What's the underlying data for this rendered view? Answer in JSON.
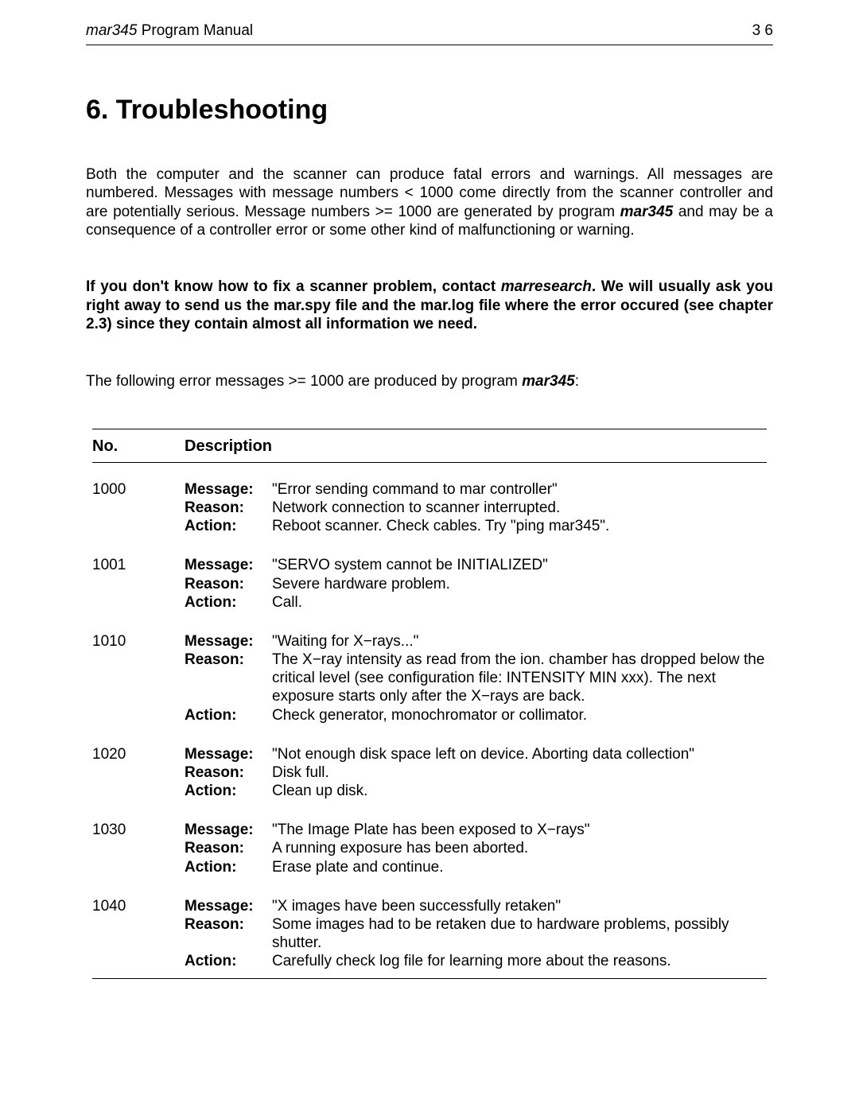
{
  "header": {
    "title_italic": "mar345",
    "title_rest": " Program Manual",
    "page_number": "3 6"
  },
  "heading": "6. Troubleshooting",
  "intro": {
    "p1_a": "Both the computer and the scanner can produce fatal errors and warnings. All messages are numbered. Messages with message numbers < 1000 come directly from the scanner controller and are potentially serious. Message numbers >= 1000 are generated by program ",
    "p1_b": "mar345",
    "p1_c": " and may be a consequence of a controller error or some other kind of malfunctioning or warning."
  },
  "notice": {
    "a": "If you don't know how to fix a scanner problem, contact ",
    "b": "marresearch",
    "c": ". We will usually ask you right away to send us the mar.spy file and the mar.log file where the error occured (see chapter 2.3) since they contain almost all information we need."
  },
  "lead": {
    "a": "The following error messages >= 1000 are produced by program ",
    "b": "mar345",
    "c": ":"
  },
  "table": {
    "headers": {
      "no": "No.",
      "desc": "Description"
    },
    "labels": {
      "message": "Message:",
      "reason": "Reason:",
      "action": "Action:"
    },
    "rows": [
      {
        "no": "1000",
        "message": "\"Error sending command to mar controller\"",
        "reason": "Network connection to scanner interrupted.",
        "action": "Reboot scanner. Check cables. Try \"ping mar345\"."
      },
      {
        "no": "1001",
        "message": "\"SERVO system cannot be INITIALIZED\"",
        "reason": "Severe hardware problem.",
        "action": "Call."
      },
      {
        "no": "1010",
        "message": "\"Waiting for X−rays...\"",
        "reason": "The X−ray intensity as read from the ion. chamber has dropped below the critical level (see configuration file: INTENSITY   MIN xxx). The next exposure starts only after the X−rays are back.",
        "action": "Check generator, monochromator or collimator."
      },
      {
        "no": "1020",
        "message": "\"Not enough disk space left on device. Aborting data collection\"",
        "reason": "Disk full.",
        "action": "Clean up disk."
      },
      {
        "no": "1030",
        "message": "\"The Image Plate has been exposed to X−rays\"",
        "reason": "A running exposure has been aborted.",
        "action": "Erase plate and continue."
      },
      {
        "no": "1040",
        "message": "\"X images have been successfully retaken\"",
        "reason": "Some images had to be retaken due to hardware problems, possibly shutter.",
        "action": "Carefully check log file for learning more about the reasons."
      }
    ]
  }
}
